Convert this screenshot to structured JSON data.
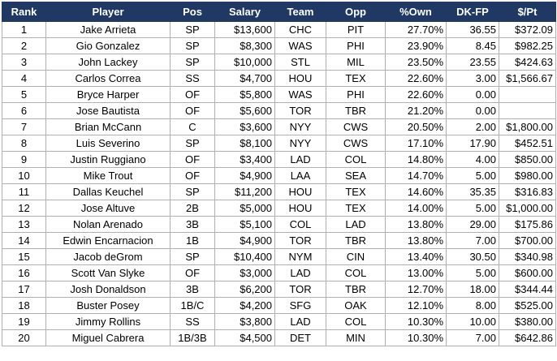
{
  "headers": [
    "Rank",
    "Player",
    "Pos",
    "Salary",
    "Team",
    "Opp",
    "%Own",
    "DK-FP",
    "$/Pt"
  ],
  "rows": [
    [
      "1",
      "Jake Arrieta",
      "SP",
      "$13,600",
      "CHC",
      "PIT",
      "27.70%",
      "36.55",
      "$372.09"
    ],
    [
      "2",
      "Gio Gonzalez",
      "SP",
      "$8,300",
      "WAS",
      "PHI",
      "23.90%",
      "8.45",
      "$982.25"
    ],
    [
      "3",
      "John Lackey",
      "SP",
      "$10,000",
      "STL",
      "MIL",
      "23.50%",
      "23.55",
      "$424.63"
    ],
    [
      "4",
      "Carlos Correa",
      "SS",
      "$4,700",
      "HOU",
      "TEX",
      "22.60%",
      "3.00",
      "$1,566.67"
    ],
    [
      "5",
      "Bryce Harper",
      "OF",
      "$5,800",
      "WAS",
      "PHI",
      "22.60%",
      "0.00",
      ""
    ],
    [
      "6",
      "Jose Bautista",
      "OF",
      "$5,600",
      "TOR",
      "TBR",
      "21.20%",
      "0.00",
      ""
    ],
    [
      "7",
      "Brian McCann",
      "C",
      "$3,600",
      "NYY",
      "CWS",
      "20.50%",
      "2.00",
      "$1,800.00"
    ],
    [
      "8",
      "Luis Severino",
      "SP",
      "$8,100",
      "NYY",
      "CWS",
      "17.10%",
      "17.90",
      "$452.51"
    ],
    [
      "9",
      "Justin Ruggiano",
      "OF",
      "$3,400",
      "LAD",
      "COL",
      "14.80%",
      "4.00",
      "$850.00"
    ],
    [
      "10",
      "Mike Trout",
      "OF",
      "$4,900",
      "LAA",
      "SEA",
      "14.70%",
      "5.00",
      "$980.00"
    ],
    [
      "11",
      "Dallas Keuchel",
      "SP",
      "$11,200",
      "HOU",
      "TEX",
      "14.60%",
      "35.35",
      "$316.83"
    ],
    [
      "12",
      "Jose Altuve",
      "2B",
      "$5,000",
      "HOU",
      "TEX",
      "14.00%",
      "5.00",
      "$1,000.00"
    ],
    [
      "13",
      "Nolan Arenado",
      "3B",
      "$5,100",
      "COL",
      "LAD",
      "13.80%",
      "29.00",
      "$175.86"
    ],
    [
      "14",
      "Edwin Encarnacion",
      "1B",
      "$4,900",
      "TOR",
      "TBR",
      "13.80%",
      "7.00",
      "$700.00"
    ],
    [
      "15",
      "Jacob deGrom",
      "SP",
      "$10,400",
      "NYM",
      "CIN",
      "13.40%",
      "30.50",
      "$340.98"
    ],
    [
      "16",
      "Scott Van Slyke",
      "OF",
      "$3,000",
      "LAD",
      "COL",
      "13.00%",
      "5.00",
      "$600.00"
    ],
    [
      "17",
      "Josh Donaldson",
      "3B",
      "$6,200",
      "TOR",
      "TBR",
      "12.70%",
      "18.00",
      "$344.44"
    ],
    [
      "18",
      "Buster Posey",
      "1B/C",
      "$4,200",
      "SFG",
      "OAK",
      "12.10%",
      "8.00",
      "$525.00"
    ],
    [
      "19",
      "Jimmy Rollins",
      "SS",
      "$3,800",
      "LAD",
      "COL",
      "10.30%",
      "10.00",
      "$380.00"
    ],
    [
      "20",
      "Miguel Cabrera",
      "1B/3B",
      "$4,500",
      "DET",
      "MIN",
      "10.30%",
      "7.00",
      "$642.86"
    ]
  ]
}
